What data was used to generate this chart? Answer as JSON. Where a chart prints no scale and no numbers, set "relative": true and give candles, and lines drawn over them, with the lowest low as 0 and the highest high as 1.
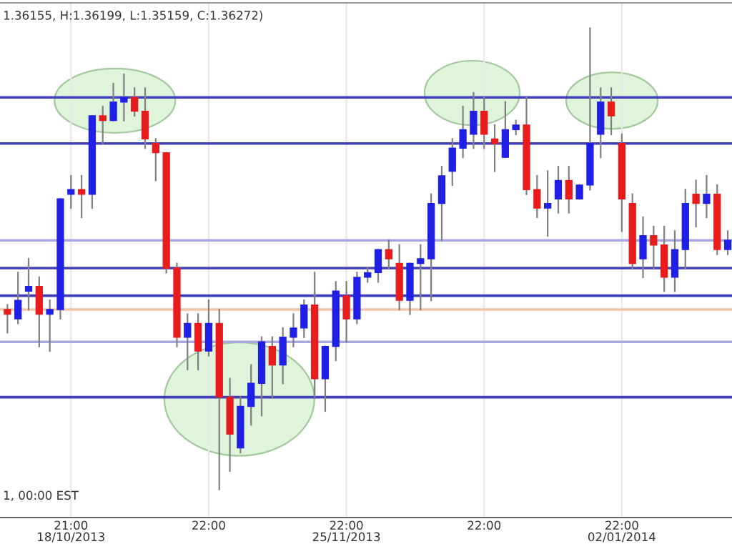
{
  "chart_data": {
    "type": "candlestick",
    "relative": true,
    "grid": "x",
    "categories": [
      null,
      null,
      null,
      null,
      null,
      null,
      "21:00\n18/10/2013",
      null,
      null,
      null,
      null,
      null,
      null,
      null,
      null,
      null,
      null,
      null,
      null,
      "22:00",
      null,
      null,
      null,
      null,
      null,
      null,
      null,
      null,
      null,
      null,
      null,
      null,
      "22:00\n25/11/2013",
      null,
      null,
      null,
      null,
      null,
      null,
      null,
      null,
      null,
      null,
      null,
      null,
      "22:00",
      null,
      null,
      null,
      null,
      null,
      null,
      null,
      null,
      null,
      null,
      null,
      null,
      "22:00\n02/01/2014",
      null,
      null,
      null,
      null,
      null,
      null,
      null,
      null,
      null,
      null
    ],
    "ohlc": [
      [
        0.39,
        0.4,
        0.34,
        0.38
      ],
      [
        0.37,
        0.47,
        0.36,
        0.41
      ],
      [
        0.43,
        0.5,
        0.39,
        0.44
      ],
      [
        0.44,
        0.46,
        0.31,
        0.38
      ],
      [
        0.38,
        0.41,
        0.3,
        0.39
      ],
      [
        0.39,
        0.63,
        0.37,
        0.63
      ],
      [
        0.64,
        0.68,
        0.61,
        0.65
      ],
      [
        0.65,
        0.68,
        0.59,
        0.64
      ],
      [
        0.64,
        0.81,
        0.61,
        0.81
      ],
      [
        0.81,
        0.83,
        0.75,
        0.8
      ],
      [
        0.8,
        0.88,
        0.8,
        0.84
      ],
      [
        0.84,
        0.9,
        0.8,
        0.85
      ],
      [
        0.85,
        0.87,
        0.81,
        0.82
      ],
      [
        0.82,
        0.87,
        0.74,
        0.76
      ],
      [
        0.75,
        0.76,
        0.67,
        0.73
      ],
      [
        0.73,
        0.73,
        0.47,
        0.48
      ],
      [
        0.48,
        0.49,
        0.31,
        0.33
      ],
      [
        0.33,
        0.38,
        0.26,
        0.36
      ],
      [
        0.36,
        0.38,
        0.26,
        0.3
      ],
      [
        0.3,
        0.41,
        0.29,
        0.36
      ],
      [
        0.36,
        0.39,
        0.0,
        0.2
      ],
      [
        0.2,
        0.24,
        0.04,
        0.12
      ],
      [
        0.09,
        0.2,
        0.08,
        0.18
      ],
      [
        0.18,
        0.27,
        0.14,
        0.23
      ],
      [
        0.23,
        0.33,
        0.16,
        0.32
      ],
      [
        0.31,
        0.33,
        0.2,
        0.27
      ],
      [
        0.27,
        0.35,
        0.23,
        0.33
      ],
      [
        0.33,
        0.38,
        0.31,
        0.35
      ],
      [
        0.35,
        0.41,
        0.33,
        0.4
      ],
      [
        0.4,
        0.47,
        0.2,
        0.24
      ],
      [
        0.24,
        0.31,
        0.17,
        0.31
      ],
      [
        0.31,
        0.45,
        0.28,
        0.43
      ],
      [
        0.42,
        0.45,
        0.32,
        0.37
      ],
      [
        0.37,
        0.47,
        0.36,
        0.46
      ],
      [
        0.46,
        0.48,
        0.45,
        0.47
      ],
      [
        0.47,
        0.52,
        0.45,
        0.52
      ],
      [
        0.52,
        0.54,
        0.48,
        0.5
      ],
      [
        0.49,
        0.53,
        0.39,
        0.41
      ],
      [
        0.41,
        0.49,
        0.38,
        0.49
      ],
      [
        0.49,
        0.53,
        0.39,
        0.5
      ],
      [
        0.5,
        0.64,
        0.41,
        0.62
      ],
      [
        0.62,
        0.7,
        0.54,
        0.68
      ],
      [
        0.69,
        0.76,
        0.66,
        0.74
      ],
      [
        0.74,
        0.83,
        0.72,
        0.78
      ],
      [
        0.77,
        0.86,
        0.74,
        0.82
      ],
      [
        0.82,
        0.85,
        0.74,
        0.77
      ],
      [
        0.76,
        0.79,
        0.69,
        0.75
      ],
      [
        0.72,
        0.84,
        0.72,
        0.78
      ],
      [
        0.78,
        0.8,
        0.77,
        0.79
      ],
      [
        0.79,
        0.85,
        0.64,
        0.65
      ],
      [
        0.65,
        0.68,
        0.59,
        0.61
      ],
      [
        0.61,
        0.69,
        0.55,
        0.62
      ],
      [
        0.63,
        0.7,
        0.6,
        0.67
      ],
      [
        0.67,
        0.7,
        0.6,
        0.63
      ],
      [
        0.63,
        0.66,
        0.63,
        0.66
      ],
      [
        0.66,
        1.0,
        0.65,
        0.75
      ],
      [
        0.77,
        0.87,
        0.72,
        0.84
      ],
      [
        0.84,
        0.87,
        0.77,
        0.81
      ],
      [
        0.75,
        0.77,
        0.56,
        0.63
      ],
      [
        0.62,
        0.64,
        0.48,
        0.49
      ],
      [
        0.5,
        0.59,
        0.46,
        0.55
      ],
      [
        0.55,
        0.57,
        0.48,
        0.53
      ],
      [
        0.53,
        0.57,
        0.43,
        0.46
      ],
      [
        0.46,
        0.56,
        0.43,
        0.52
      ],
      [
        0.52,
        0.65,
        0.48,
        0.62
      ],
      [
        0.64,
        0.67,
        0.57,
        0.62
      ],
      [
        0.62,
        0.68,
        0.59,
        0.64
      ],
      [
        0.64,
        0.66,
        0.51,
        0.52
      ],
      [
        0.52,
        0.56,
        0.51,
        0.54
      ]
    ],
    "colors": [
      "#e81c1c",
      "#1f1fe6",
      "#1f1fe6",
      "#e81c1c",
      "#1f1fe6",
      "#1f1fe6",
      "#1f1fe6",
      "#e81c1c",
      "#1f1fe6",
      "#e81c1c",
      "#1f1fe6",
      "#1f1fe6",
      "#e81c1c",
      "#e81c1c",
      "#e81c1c",
      "#e81c1c",
      "#e81c1c",
      "#1f1fe6",
      "#e81c1c",
      "#1f1fe6",
      "#e81c1c",
      "#e81c1c",
      "#1f1fe6",
      "#1f1fe6",
      "#1f1fe6",
      "#e81c1c",
      "#1f1fe6",
      "#1f1fe6",
      "#1f1fe6",
      "#e81c1c",
      "#1f1fe6",
      "#1f1fe6",
      "#e81c1c",
      "#1f1fe6",
      "#1f1fe6",
      "#1f1fe6",
      "#e81c1c",
      "#e81c1c",
      "#1f1fe6",
      "#1f1fe6",
      "#1f1fe6",
      "#1f1fe6",
      "#1f1fe6",
      "#1f1fe6",
      "#1f1fe6",
      "#e81c1c",
      "#e81c1c",
      "#1f1fe6",
      "#1f1fe6",
      "#e81c1c",
      "#e81c1c",
      "#1f1fe6",
      "#1f1fe6",
      "#e81c1c",
      "#1f1fe6",
      "#1f1fe6",
      "#1f1fe6",
      "#e81c1c",
      "#e81c1c",
      "#e81c1c",
      "#1f1fe6",
      "#e81c1c",
      "#e81c1c",
      "#1f1fe6",
      "#1f1fe6",
      "#e81c1c",
      "#1f1fe6",
      "#e81c1c",
      "#1f1fe6"
    ],
    "ref_lines": [
      {
        "axis": "y",
        "value": 0.85,
        "color": "#4040b8"
      },
      {
        "axis": "y",
        "value": 0.75,
        "color": "#4040b8"
      },
      {
        "axis": "y",
        "value": 0.54,
        "color": "#a8a8e0"
      },
      {
        "axis": "y",
        "value": 0.48,
        "color": "#4040b8"
      },
      {
        "axis": "y",
        "value": 0.42,
        "color": "#4040b8"
      },
      {
        "axis": "y",
        "value": 0.39,
        "color": "#f2c4a8"
      },
      {
        "axis": "y",
        "value": 0.32,
        "color": "#a8a8e0"
      },
      {
        "axis": "y",
        "value": 0.2,
        "color": "#4040b8"
      }
    ],
    "annotations": [
      "1.36155, H:1.36199, L:1.35159, C:1.36272)",
      "1, 00:00 EST"
    ]
  }
}
